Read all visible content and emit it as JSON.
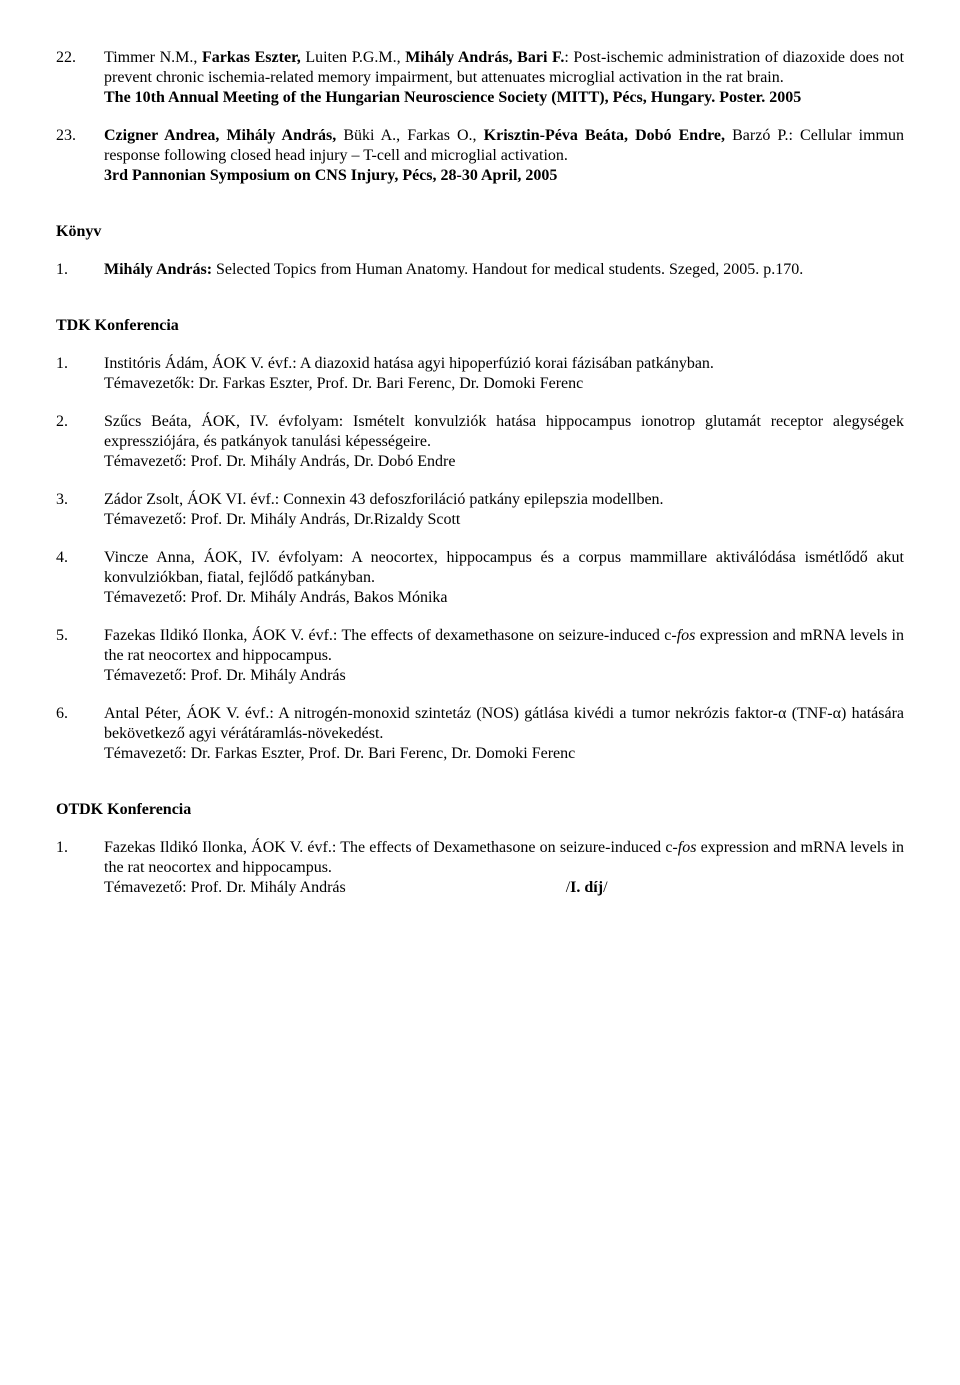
{
  "refs": [
    {
      "num": "22.",
      "html": "Timmer N.M., <span class='b'>Farkas Eszter,</span> Luiten P.G.M., <span class='b'>Mihály András, Bari F.</span>: Post-ischemic administration of diazoxide does not prevent chronic ischemia-related memory impairment, but attenuates microglial activation in the rat brain.<br><span class='b'>The 10th Annual Meeting of the Hungarian Neuroscience Society (MITT), Pécs, Hungary. Poster. 2005</span>"
    },
    {
      "num": "23.",
      "html": "<span class='b'>Czigner Andrea, Mihály András,</span> Büki A., Farkas O., <span class='b'>Krisztin-Péva Beáta, Dobó Endre,</span> Barzó P.: Cellular immun response following closed head injury – T-cell and microglial activation.<br><span class='b'>3rd Pannonian Symposium on CNS Injury, Pécs, 28-30 April, 2005</span>"
    }
  ],
  "sections": [
    {
      "heading": "Könyv",
      "items": [
        {
          "num": "1.",
          "html": "<span class='b'>Mihály András:</span> Selected Topics from Human Anatomy. Handout for medical students. Szeged, 2005. p.170."
        }
      ]
    },
    {
      "heading": "TDK Konferencia",
      "items": [
        {
          "num": "1.",
          "html": "Institóris Ádám, ÁOK V. évf.: A diazoxid hatása agyi hipoperfúzió korai fázisában patkányban.<br>Témavezetők: Dr. Farkas Eszter, Prof. Dr. Bari Ferenc, Dr. Domoki Ferenc"
        },
        {
          "num": "2.",
          "html": "Szűcs Beáta, ÁOK, IV. évfolyam: Ismételt konvulziók hatása hippocampus ionotrop glutamát receptor alegységek expressziójára, és patkányok tanulási képességeire.<br>Témavezető: Prof. Dr. Mihály András, Dr. Dobó Endre"
        },
        {
          "num": "3.",
          "html": "Zádor Zsolt, ÁOK VI. évf.: Connexin 43 defoszforiláció patkány epilepszia modellben.<br>Témavezető: Prof. Dr. Mihály András, Dr.Rizaldy Scott"
        },
        {
          "num": "4.",
          "html": "Vincze Anna, ÁOK, IV. évfolyam: A neocortex, hippocampus és a corpus mammillare aktiválódása ismétlődő akut konvulziókban, fiatal, fejlődő patkányban.<br>Témavezető: Prof. Dr. Mihály András, Bakos Mónika"
        },
        {
          "num": "5.",
          "html": "Fazekas Ildikó Ilonka, ÁOK V. évf.: The effects of dexamethasone on seizure-induced c-<span class='i'>fos</span> expression and mRNA levels in the rat neocortex and hippocampus.<br>Témavezető: Prof. Dr. Mihály András"
        },
        {
          "num": "6.",
          "html": "Antal Péter, ÁOK V. évf.: A nitrogén-monoxid szintetáz (NOS) gátlása kivédi a tumor nekrózis faktor-α (TNF-α) hatására bekövetkező agyi vérátáramlás-növekedést.<br>Témavezető: Dr. Farkas Eszter, Prof. Dr. Bari Ferenc, Dr. Domoki Ferenc"
        }
      ]
    },
    {
      "heading": "OTDK Konferencia",
      "items": [
        {
          "num": "1.",
          "html": "Fazekas Ildikó Ilonka, ÁOK V. évf.: The effects of Dexamethasone on seizure-induced c-<span class='i'>fos</span> expression and mRNA levels in the rat neocortex and hippocampus.<br>Témavezető: Prof. Dr. Mihály András<span class='award'>/<span class='b'>I. díj</span>/</span>"
        }
      ]
    }
  ]
}
